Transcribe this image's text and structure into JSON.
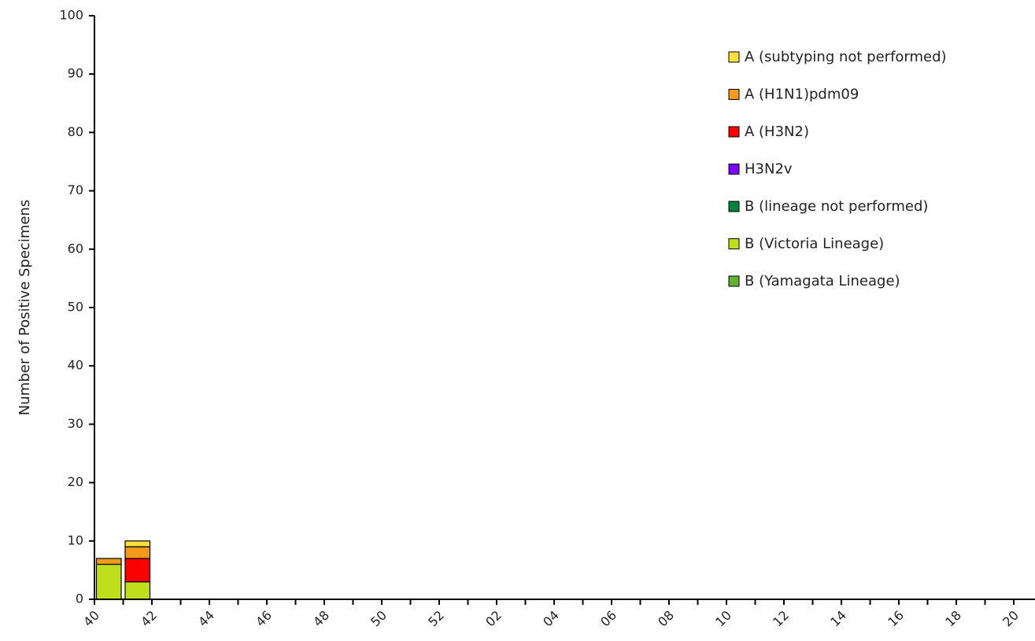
{
  "chart_data": {
    "type": "stacked_bar",
    "y_label": "Number of Positive Specimens",
    "categories": [
      "40",
      null,
      "42",
      null,
      "44",
      null,
      "46",
      null,
      "48",
      null,
      "50",
      null,
      "52",
      null,
      "02",
      null,
      "04",
      null,
      "06",
      null,
      "08",
      null,
      "10",
      null,
      "12",
      null,
      "14",
      null,
      "16",
      null,
      "18",
      null,
      "20"
    ],
    "series": [
      {
        "name": "A (subtyping not performed)",
        "color": "#ffe03c",
        "values": [
          0,
          1,
          null,
          null,
          null,
          null,
          null,
          null,
          null,
          null,
          null,
          null,
          null,
          null,
          null,
          null,
          null,
          null,
          null,
          null,
          null,
          null,
          null,
          null,
          null,
          null,
          null,
          null,
          null,
          null,
          null,
          null,
          null
        ]
      },
      {
        "name": "A (H1N1)pdm09",
        "color": "#f39a1a",
        "values": [
          1,
          2,
          null,
          null,
          null,
          null,
          null,
          null,
          null,
          null,
          null,
          null,
          null,
          null,
          null,
          null,
          null,
          null,
          null,
          null,
          null,
          null,
          null,
          null,
          null,
          null,
          null,
          null,
          null,
          null,
          null,
          null,
          null
        ]
      },
      {
        "name": "A (H3N2)",
        "color": "#ff0000",
        "values": [
          0,
          4,
          null,
          null,
          null,
          null,
          null,
          null,
          null,
          null,
          null,
          null,
          null,
          null,
          null,
          null,
          null,
          null,
          null,
          null,
          null,
          null,
          null,
          null,
          null,
          null,
          null,
          null,
          null,
          null,
          null,
          null,
          null
        ]
      },
      {
        "name": "H3N2v",
        "color": "#7f00ff",
        "values": [
          0,
          0,
          null,
          null,
          null,
          null,
          null,
          null,
          null,
          null,
          null,
          null,
          null,
          null,
          null,
          null,
          null,
          null,
          null,
          null,
          null,
          null,
          null,
          null,
          null,
          null,
          null,
          null,
          null,
          null,
          null,
          null,
          null
        ]
      },
      {
        "name": "B (lineage not performed)",
        "color": "#00843d",
        "values": [
          0,
          0,
          null,
          null,
          null,
          null,
          null,
          null,
          null,
          null,
          null,
          null,
          null,
          null,
          null,
          null,
          null,
          null,
          null,
          null,
          null,
          null,
          null,
          null,
          null,
          null,
          null,
          null,
          null,
          null,
          null,
          null,
          null
        ]
      },
      {
        "name": "B (Victoria Lineage)",
        "color": "#bfdf1a",
        "values": [
          6,
          3,
          null,
          null,
          null,
          null,
          null,
          null,
          null,
          null,
          null,
          null,
          null,
          null,
          null,
          null,
          null,
          null,
          null,
          null,
          null,
          null,
          null,
          null,
          null,
          null,
          null,
          null,
          null,
          null,
          null,
          null,
          null
        ]
      },
      {
        "name": "B (Yamagata Lineage)",
        "color": "#62b22f",
        "values": [
          0,
          0,
          null,
          null,
          null,
          null,
          null,
          null,
          null,
          null,
          null,
          null,
          null,
          null,
          null,
          null,
          null,
          null,
          null,
          null,
          null,
          null,
          null,
          null,
          null,
          null,
          null,
          null,
          null,
          null,
          null,
          null,
          null
        ]
      }
    ],
    "ylim": [
      0,
      100
    ],
    "yticks": [
      0,
      10,
      20,
      30,
      40,
      50,
      60,
      70,
      80,
      90,
      100
    ],
    "legend": "top-right"
  }
}
